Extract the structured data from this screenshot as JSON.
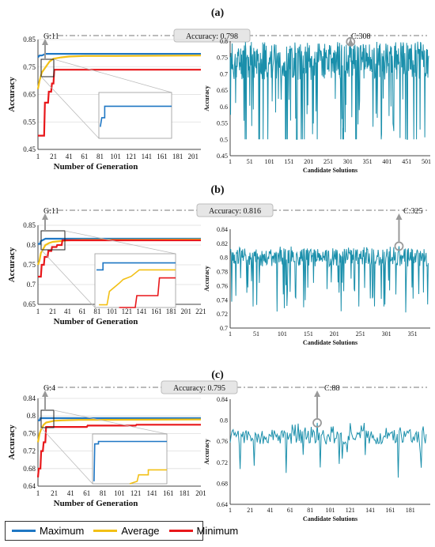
{
  "colors": {
    "maximum": "#1f77c4",
    "average": "#f2c016",
    "minimum": "#e8171a",
    "candidate": "#1a8fab",
    "grid": "#dddddd"
  },
  "legend": [
    {
      "label": "Maximum",
      "color": "#1f77c4"
    },
    {
      "label": "Average",
      "color": "#f2c016"
    },
    {
      "label": "Minimum",
      "color": "#e8171a"
    }
  ],
  "chart_data": [
    {
      "panel": "(a)",
      "left": {
        "type": "line",
        "xlabel": "Number of Generation",
        "ylabel": "Accuracy",
        "xticks": [
          "1",
          "21",
          "41",
          "61",
          "81",
          "101",
          "121",
          "141",
          "161",
          "181",
          "201"
        ],
        "yticks": [
          "0.45",
          "0.55",
          "0.65",
          "0.75",
          "0.85"
        ],
        "ylim": [
          0.45,
          0.85
        ],
        "xlim": [
          1,
          211
        ],
        "series": [
          {
            "name": "Maximum",
            "x": [
              1,
              3,
              6,
              11,
              50,
              100,
              150,
              211
            ],
            "y": [
              0.785,
              0.792,
              0.792,
              0.798,
              0.798,
              0.798,
              0.798,
              0.798
            ]
          },
          {
            "name": "Average",
            "x": [
              1,
              3,
              6,
              11,
              16,
              21,
              31,
              41,
              61,
              101,
              211
            ],
            "y": [
              0.67,
              0.7,
              0.73,
              0.75,
              0.77,
              0.78,
              0.785,
              0.788,
              0.79,
              0.79,
              0.792
            ]
          },
          {
            "name": "Minimum",
            "x": [
              1,
              9,
              10,
              14,
              15,
              18,
              19,
              21,
              22,
              25,
              211
            ],
            "y": [
              0.5,
              0.5,
              0.62,
              0.62,
              0.66,
              0.66,
              0.69,
              0.69,
              0.74,
              0.74,
              0.74
            ]
          }
        ],
        "annotation_gen": "G:11"
      },
      "accuracy_label": "Accuracy: 0.798",
      "right": {
        "type": "line",
        "xlabel": "Candidate Solutions",
        "ylabel": "Accuracy",
        "xticks": [
          "1",
          "51",
          "101",
          "151",
          "201",
          "251",
          "301",
          "351",
          "401",
          "451",
          "501"
        ],
        "yticks": [
          "0.45",
          "0.5",
          "0.55",
          "0.6",
          "0.65",
          "0.7",
          "0.75",
          "0.8"
        ],
        "ylim": [
          0.45,
          0.8
        ],
        "xlim": [
          1,
          511
        ],
        "mean": 0.735,
        "spread": 0.055,
        "min_value": 0.5,
        "max_value": 0.798,
        "best_x": 308,
        "annotation_candidate": "C:308"
      }
    },
    {
      "panel": "(b)",
      "left": {
        "type": "line",
        "xlabel": "Number of Generation",
        "ylabel": "Accuracy",
        "xticks": [
          "1",
          "21",
          "41",
          "61",
          "81",
          "101",
          "121",
          "141",
          "161",
          "181",
          "201",
          "221"
        ],
        "yticks": [
          "0.65",
          "0.7",
          "0.75",
          "0.8",
          "0.85"
        ],
        "ylim": [
          0.65,
          0.85
        ],
        "xlim": [
          1,
          221
        ],
        "series": [
          {
            "name": "Maximum",
            "x": [
              1,
              4,
              5,
              11,
              100,
              221
            ],
            "y": [
              0.803,
              0.803,
              0.81,
              0.816,
              0.816,
              0.816
            ]
          },
          {
            "name": "Average",
            "x": [
              1,
              3,
              5,
              8,
              11,
              16,
              21,
              31,
              41,
              61,
              221
            ],
            "y": [
              0.75,
              0.76,
              0.78,
              0.79,
              0.8,
              0.805,
              0.808,
              0.81,
              0.812,
              0.813,
              0.814
            ]
          },
          {
            "name": "Minimum",
            "x": [
              1,
              5,
              6,
              9,
              10,
              14,
              15,
              19,
              20,
              26,
              27,
              33,
              34,
              221
            ],
            "y": [
              0.72,
              0.72,
              0.75,
              0.75,
              0.77,
              0.77,
              0.785,
              0.785,
              0.795,
              0.795,
              0.8,
              0.8,
              0.812,
              0.812
            ]
          }
        ],
        "annotation_gen": "G:11"
      },
      "accuracy_label": "Accuracy: 0.816",
      "right": {
        "type": "line",
        "xlabel": "Candidate Solutions",
        "ylabel": "Accuracy",
        "xticks": [
          "1",
          "51",
          "101",
          "151",
          "201",
          "251",
          "301",
          "351"
        ],
        "yticks": [
          "0.7",
          "0.72",
          "0.74",
          "0.76",
          "0.78",
          "0.8",
          "0.82",
          "0.84"
        ],
        "ylim": [
          0.7,
          0.84
        ],
        "xlim": [
          1,
          385
        ],
        "mean": 0.8,
        "spread": 0.013,
        "min_value": 0.72,
        "max_value": 0.816,
        "best_x": 325,
        "annotation_candidate": "C:325"
      }
    },
    {
      "panel": "(c)",
      "left": {
        "type": "line",
        "xlabel": "Number of Generation",
        "ylabel": "Accuracy",
        "xticks": [
          "1",
          "21",
          "41",
          "61",
          "81",
          "101",
          "121",
          "141",
          "161",
          "181",
          "201"
        ],
        "yticks": [
          "0.64",
          "0.68",
          "0.72",
          "0.76",
          "0.8",
          "0.84"
        ],
        "ylim": [
          0.64,
          0.84
        ],
        "xlim": [
          1,
          201
        ],
        "series": [
          {
            "name": "Maximum",
            "x": [
              1,
              3,
              4,
              100,
              201
            ],
            "y": [
              0.79,
              0.79,
              0.795,
              0.795,
              0.795
            ]
          },
          {
            "name": "Average",
            "x": [
              1,
              3,
              5,
              8,
              11,
              16,
              21,
              31,
              51,
              201
            ],
            "y": [
              0.74,
              0.76,
              0.77,
              0.78,
              0.785,
              0.787,
              0.789,
              0.79,
              0.791,
              0.792
            ]
          },
          {
            "name": "Minimum",
            "x": [
              1,
              2,
              4,
              5,
              7,
              8,
              10,
              11,
              61,
              62,
              121,
              122,
              201
            ],
            "y": [
              0.66,
              0.68,
              0.68,
              0.72,
              0.72,
              0.74,
              0.74,
              0.775,
              0.775,
              0.778,
              0.778,
              0.78,
              0.78
            ]
          }
        ],
        "annotation_gen": "G:4"
      },
      "accuracy_label": "Accuracy: 0.795",
      "right": {
        "type": "line",
        "xlabel": "Candidate Solutions",
        "ylabel": "Accuracy",
        "xticks": [
          "1",
          "21",
          "41",
          "61",
          "81",
          "101",
          "121",
          "141",
          "161",
          "181"
        ],
        "yticks": [
          "0.64",
          "0.68",
          "0.72",
          "0.76",
          "0.8",
          "0.84"
        ],
        "ylim": [
          0.64,
          0.84
        ],
        "xlim": [
          1,
          201
        ],
        "mean": 0.768,
        "spread": 0.014,
        "min_value": 0.665,
        "max_value": 0.795,
        "best_x": 88,
        "annotation_candidate": "C:88"
      }
    }
  ]
}
